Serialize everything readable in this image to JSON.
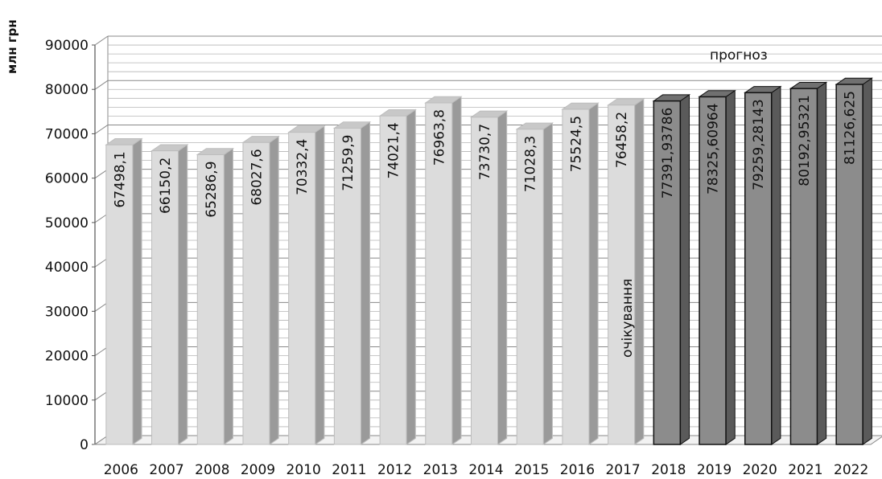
{
  "chart_data": {
    "type": "bar",
    "ylabel": "млн грн",
    "ylim": [
      0,
      90000
    ],
    "yticks": [
      0,
      10000,
      20000,
      30000,
      40000,
      50000,
      60000,
      70000,
      80000,
      90000
    ],
    "grid": true,
    "categories": [
      "2006",
      "2007",
      "2008",
      "2009",
      "2010",
      "2011",
      "2012",
      "2013",
      "2014",
      "2015",
      "2016",
      "2017",
      "2018",
      "2019",
      "2020",
      "2021",
      "2022"
    ],
    "values": [
      67498.1,
      66150.2,
      65286.9,
      68027.6,
      70332.4,
      71259.9,
      74021.4,
      76963.8,
      73730.7,
      71028.3,
      75524.5,
      76458.2,
      77391.93786,
      78325.60964,
      79259.28143,
      80192.95321,
      81126.625
    ],
    "value_labels": [
      "67498,1",
      "66150,2",
      "65286,9",
      "68027,6",
      "70332,4",
      "71259,9",
      "74021,4",
      "76963,8",
      "73730,7",
      "71028,3",
      "75524,5",
      "76458,2",
      "77391,93786",
      "78325,60964",
      "79259,28143",
      "80192,95321",
      "81126,625"
    ],
    "annotations": {
      "expected": "очікування",
      "forecast": "прогноз"
    },
    "colors": {
      "actual": "#dcdcdc",
      "forecast": "#8c8c8c",
      "grid": "#888888"
    },
    "forecast_start_index": 12
  }
}
